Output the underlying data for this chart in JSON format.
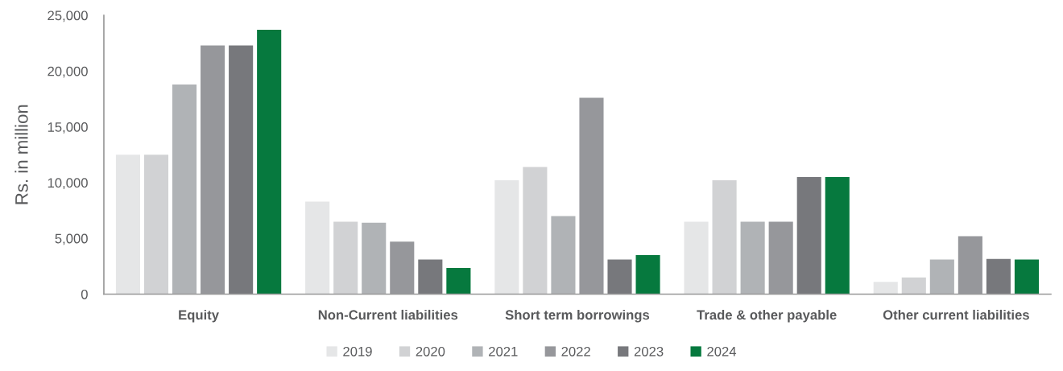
{
  "chart_data": {
    "type": "bar",
    "ylabel": "Rs. in million",
    "categories": [
      "Equity",
      "Non-Current liabilities",
      "Short term borrowings",
      "Trade & other payable",
      "Other current liabilities"
    ],
    "series": [
      {
        "name": "2019",
        "color": "#e5e6e7",
        "values": [
          12500,
          8300,
          10200,
          6500,
          1100
        ]
      },
      {
        "name": "2020",
        "color": "#d1d2d4",
        "values": [
          12500,
          6500,
          11400,
          10200,
          1500
        ]
      },
      {
        "name": "2021",
        "color": "#b0b3b6",
        "values": [
          18800,
          6400,
          7000,
          6500,
          3100
        ]
      },
      {
        "name": "2022",
        "color": "#96979b",
        "values": [
          22300,
          4700,
          17600,
          6500,
          5200
        ]
      },
      {
        "name": "2023",
        "color": "#77787c",
        "values": [
          22300,
          3100,
          3100,
          10500,
          3150
        ]
      },
      {
        "name": "2024",
        "color": "#06793e",
        "values": [
          23700,
          2350,
          3500,
          10500,
          3100
        ]
      }
    ],
    "ylim": [
      0,
      25000
    ],
    "yticks": [
      0,
      {
        "value": 5000,
        "label": "5,000"
      },
      {
        "value": 10000,
        "label": "10,000"
      },
      {
        "value": 15000,
        "label": "15,000"
      },
      {
        "value": 20000,
        "label": "20,000"
      },
      {
        "value": 25000,
        "label": "25,000"
      }
    ],
    "grid": false,
    "legend": "bottom"
  }
}
